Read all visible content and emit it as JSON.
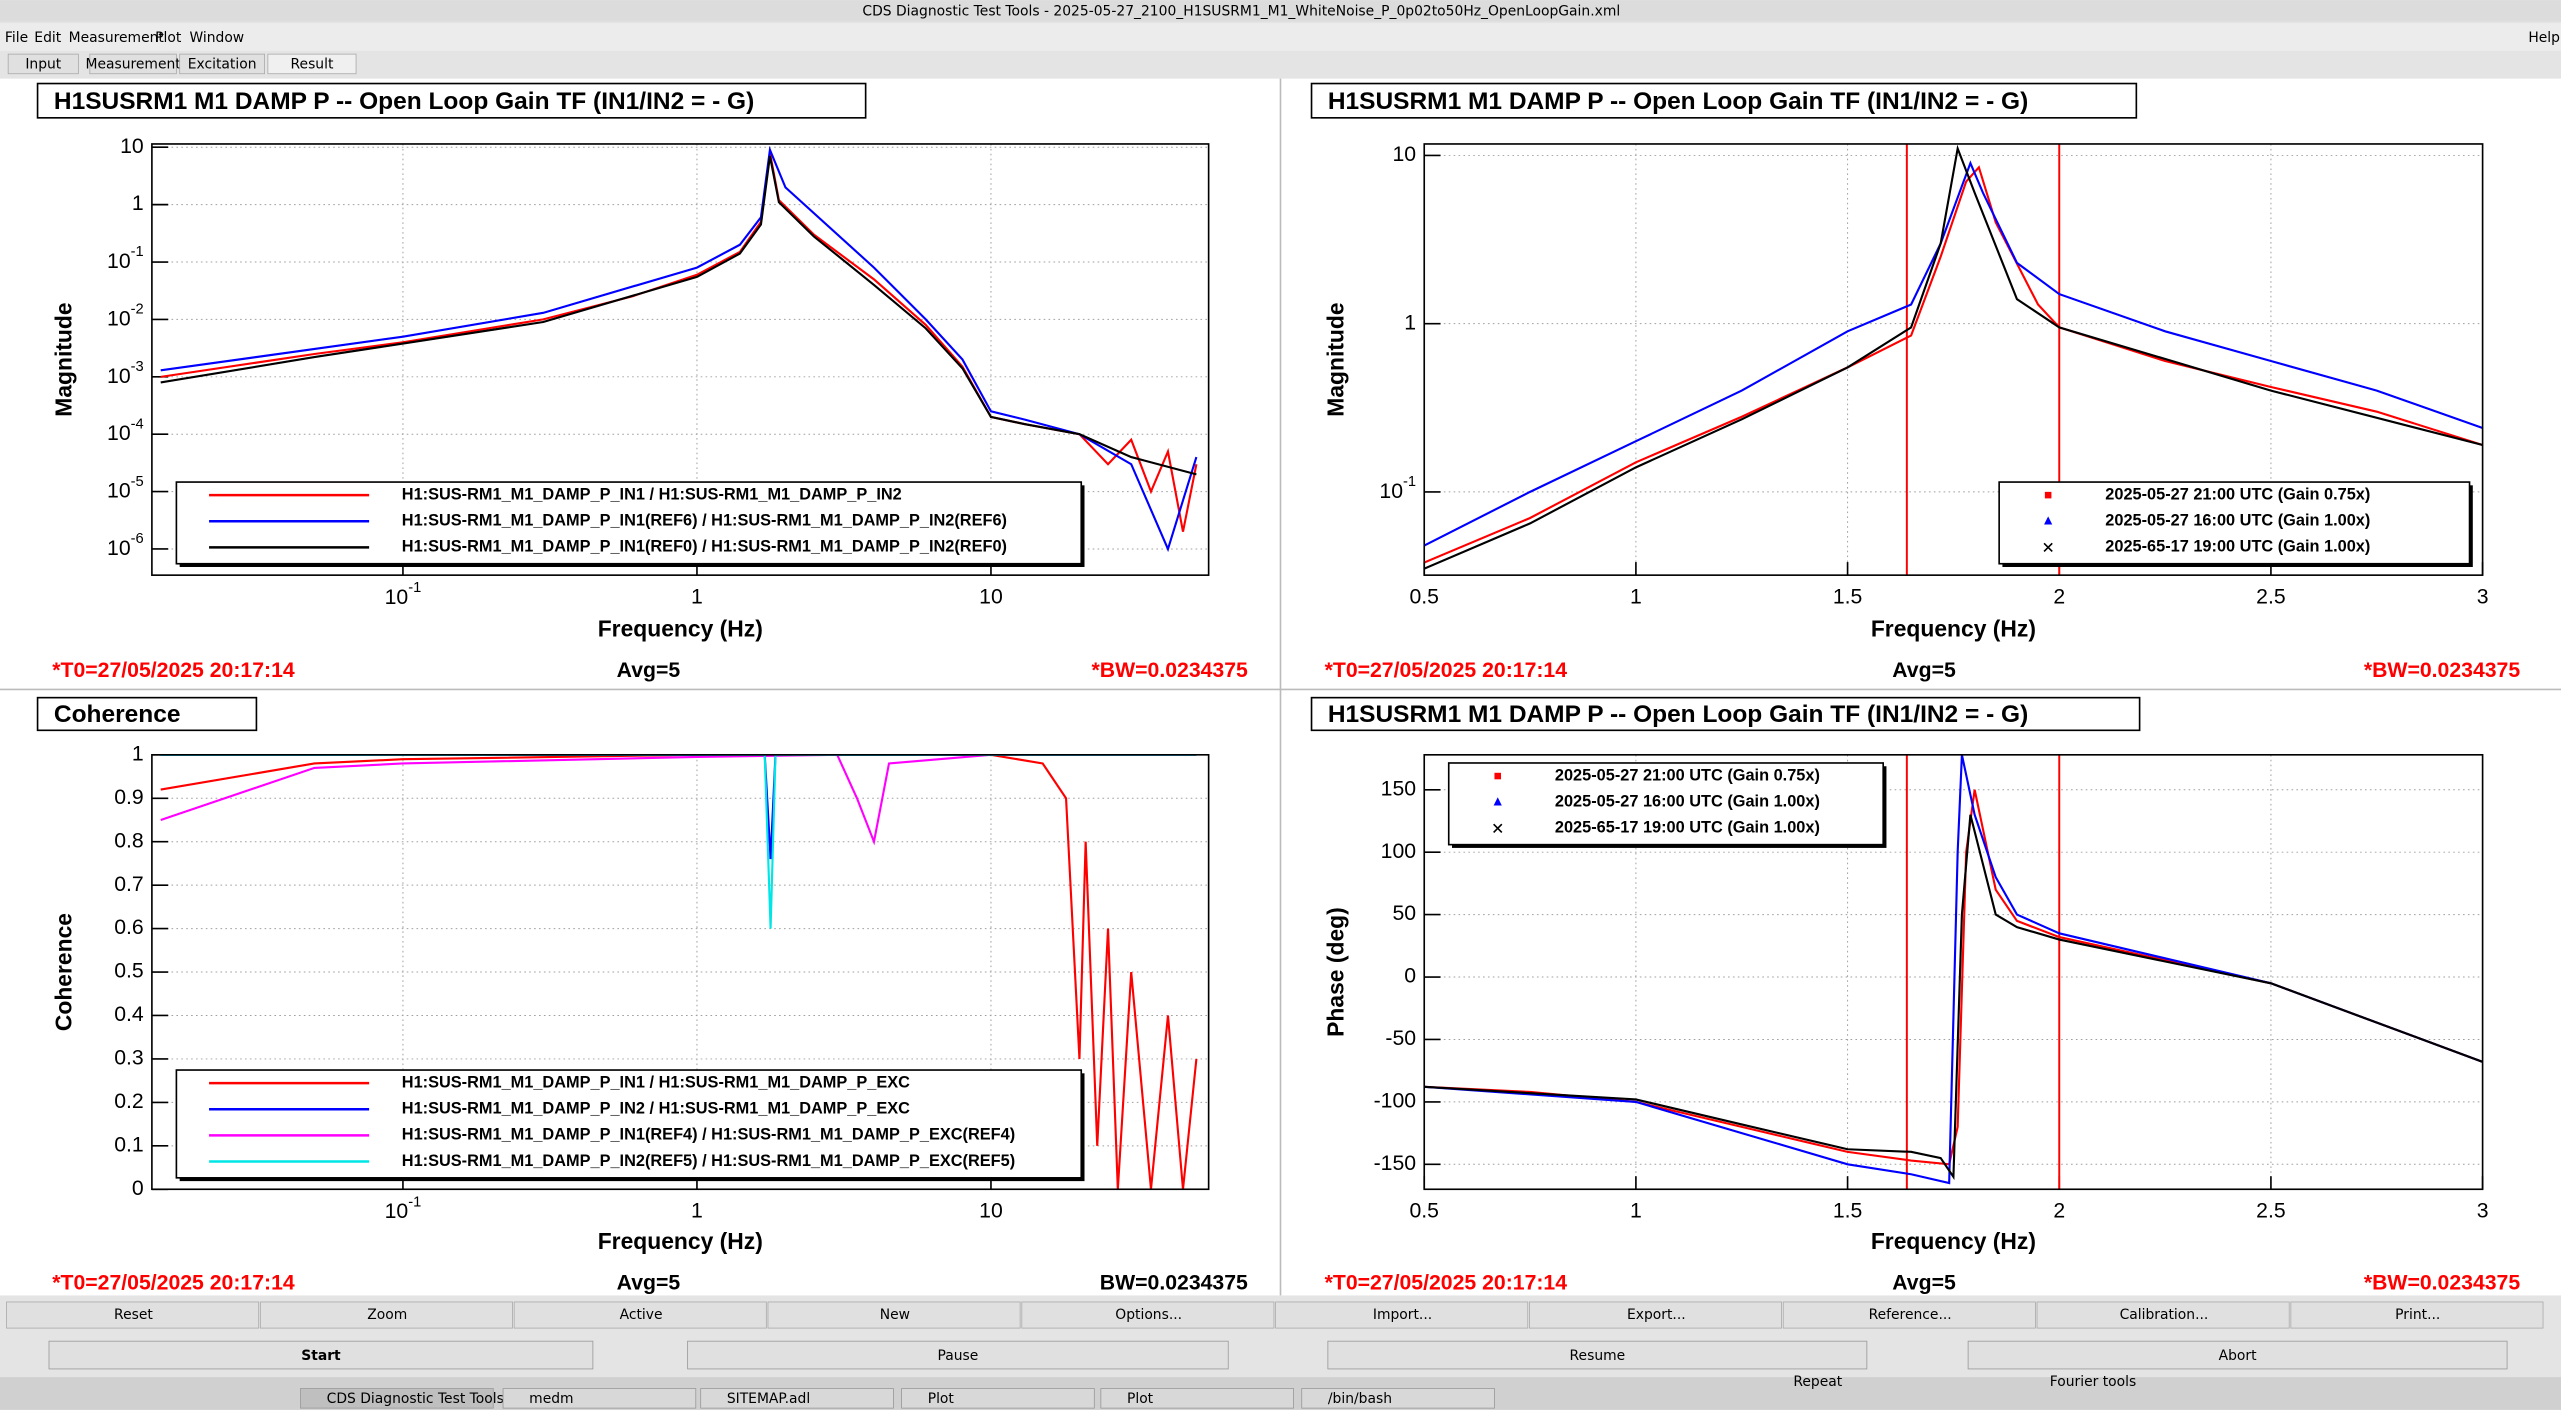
{
  "window_title": "CDS Diagnostic Test Tools - 2025-05-27_2100_H1SUSRM1_M1_WhiteNoise_P_0p02to50Hz_OpenLoopGain.xml",
  "menu": [
    "File",
    "Edit",
    "Measurement",
    "Plot",
    "Window"
  ],
  "help": "Help",
  "tabs": [
    "Input",
    "Measurement",
    "Excitation",
    "Result"
  ],
  "panels": [
    {
      "title": "H1SUSRM1 M1 DAMP P -- Open Loop Gain TF (IN1/IN2 = - G)",
      "xlabel": "Frequency (Hz)",
      "ylabel": "Magnitude",
      "xlog": true,
      "ylog": true,
      "grid": true,
      "legend": "bottom-left",
      "legend_style": "line",
      "xlim": [
        0.014,
        55
      ],
      "ylim": [
        3.5e-07,
        11.4
      ],
      "xticks": [
        {
          "value": 0.1,
          "label": "10",
          "exp": "-1"
        },
        1,
        10
      ],
      "yticks": [
        {
          "value": 1e-06,
          "label": "10",
          "exp": "-6"
        },
        {
          "value": 1e-05,
          "label": "10",
          "exp": "-5"
        },
        {
          "value": 0.0001,
          "label": "10",
          "exp": "-4"
        },
        {
          "value": 0.001,
          "label": "10",
          "exp": "-3"
        },
        {
          "value": 0.01,
          "label": "10",
          "exp": "-2"
        },
        {
          "value": 0.1,
          "label": "10",
          "exp": "-1"
        },
        1,
        10
      ],
      "series": [
        {
          "name": "H1:SUS-RM1_M1_DAMP_P_IN1 / H1:SUS-RM1_M1_DAMP_P_IN2",
          "color": "#ff0000",
          "x": [
            0.015,
            0.05,
            0.1,
            0.3,
            0.6,
            1,
            1.4,
            1.65,
            1.77,
            1.9,
            2.5,
            4,
            6,
            8,
            10,
            13,
            20,
            25,
            30,
            35,
            40,
            45,
            50
          ],
          "y": [
            0.001,
            0.0025,
            0.004,
            0.01,
            0.025,
            0.06,
            0.15,
            0.5,
            8,
            1.2,
            0.3,
            0.05,
            0.008,
            0.0015,
            0.0002,
            0.00015,
            0.0001,
            3e-05,
            8e-05,
            1e-05,
            5e-05,
            2e-06,
            3e-05
          ]
        },
        {
          "name": "H1:SUS-RM1_M1_DAMP_P_IN1(REF6) / H1:SUS-RM1_M1_DAMP_P_IN2(REF6)",
          "color": "#0000ff",
          "x": [
            0.015,
            0.1,
            0.3,
            1,
            1.4,
            1.65,
            1.77,
            2,
            4,
            6,
            8,
            10,
            13,
            20,
            30,
            40,
            50
          ],
          "y": [
            0.0013,
            0.005,
            0.013,
            0.08,
            0.2,
            0.6,
            9,
            2,
            0.08,
            0.01,
            0.002,
            0.00025,
            0.00018,
            0.0001,
            3e-05,
            1e-06,
            4e-05
          ]
        },
        {
          "name": "H1:SUS-RM1_M1_DAMP_P_IN1(REF0) / H1:SUS-RM1_M1_DAMP_P_IN2(REF0)",
          "color": "#000000",
          "x": [
            0.015,
            0.05,
            0.1,
            0.3,
            1,
            1.4,
            1.65,
            1.77,
            1.9,
            2.5,
            4,
            6,
            8,
            10,
            13,
            20,
            30,
            50
          ],
          "y": [
            0.0008,
            0.0022,
            0.0038,
            0.009,
            0.055,
            0.14,
            0.45,
            7,
            1.1,
            0.28,
            0.04,
            0.007,
            0.0014,
            0.0002,
            0.00015,
            0.0001,
            4e-05,
            2e-05
          ]
        }
      ],
      "footer": [
        {
          "text": "*T0=27/05/2025 20:17:14",
          "color": "#ff0000"
        },
        {
          "text": "Avg=5",
          "color": "#000000"
        },
        {
          "text": "*BW=0.0234375",
          "color": "#ff0000"
        }
      ]
    },
    {
      "title": "H1SUSRM1 M1 DAMP P -- Open Loop Gain TF (IN1/IN2 = - G)",
      "xlabel": "Frequency (Hz)",
      "ylabel": "Magnitude",
      "xlog": false,
      "ylog": true,
      "grid": true,
      "legend": "bottom-right",
      "legend_style": "marker",
      "xlim": [
        0.5,
        3
      ],
      "ylim": [
        0.032,
        11.7
      ],
      "xticks": [
        0.5,
        1,
        1.5,
        2,
        2.5,
        3
      ],
      "yticks": [
        {
          "value": 0.1,
          "label": "10",
          "exp": "-1"
        },
        1,
        10
      ],
      "cursors": [
        1.64,
        2.0
      ],
      "cursor_color": "#ff0000",
      "series": [
        {
          "name": "2025-05-27 21:00 UTC (Gain 0.75x)",
          "color": "#ff0000",
          "marker": "square",
          "x": [
            0.5,
            0.75,
            1,
            1.25,
            1.5,
            1.65,
            1.72,
            1.78,
            1.81,
            1.85,
            1.95,
            2,
            2.25,
            2.5,
            2.75,
            3
          ],
          "y": [
            0.038,
            0.07,
            0.15,
            0.28,
            0.55,
            0.85,
            2.5,
            7,
            8.5,
            4,
            1.3,
            0.95,
            0.6,
            0.42,
            0.3,
            0.19
          ]
        },
        {
          "name": "2025-05-27 16:00 UTC (Gain 1.00x)",
          "color": "#0000ff",
          "marker": "triangle",
          "x": [
            0.5,
            0.75,
            1,
            1.25,
            1.5,
            1.65,
            1.72,
            1.79,
            1.82,
            1.9,
            2,
            2.25,
            2.5,
            2.75,
            3
          ],
          "y": [
            0.048,
            0.1,
            0.2,
            0.4,
            0.9,
            1.3,
            3,
            9,
            6,
            2.3,
            1.5,
            0.9,
            0.6,
            0.4,
            0.24
          ]
        },
        {
          "name": "2025-65-17 19:00 UTC (Gain 1.00x)",
          "color": "#000000",
          "marker": "x",
          "x": [
            0.5,
            0.75,
            1,
            1.25,
            1.5,
            1.65,
            1.72,
            1.76,
            1.8,
            1.9,
            2,
            2.5,
            3
          ],
          "y": [
            0.035,
            0.065,
            0.14,
            0.27,
            0.55,
            0.95,
            3,
            11,
            6,
            1.4,
            0.95,
            0.4,
            0.19
          ]
        }
      ],
      "footer": [
        {
          "text": "*T0=27/05/2025 20:17:14",
          "color": "#ff0000"
        },
        {
          "text": "Avg=5",
          "color": "#000000"
        },
        {
          "text": "*BW=0.0234375",
          "color": "#ff0000"
        }
      ]
    },
    {
      "title": "Coherence",
      "xlabel": "Frequency (Hz)",
      "ylabel": "Coherence",
      "xlog": true,
      "ylog": false,
      "grid": true,
      "legend": "bottom-left",
      "legend_style": "line",
      "xlim": [
        0.014,
        55
      ],
      "ylim": [
        0,
        1
      ],
      "xticks": [
        {
          "value": 0.1,
          "label": "10",
          "exp": "-1"
        },
        1,
        10
      ],
      "yticks": [
        0,
        0.1,
        0.2,
        0.3,
        0.4,
        0.5,
        0.6,
        0.7,
        0.8,
        0.9,
        1
      ],
      "series": [
        {
          "name": "H1:SUS-RM1_M1_DAMP_P_IN1 / H1:SUS-RM1_M1_DAMP_P_EXC",
          "color": "#ff0000",
          "x": [
            0.015,
            0.05,
            0.1,
            1,
            10,
            15,
            18,
            20,
            21,
            23,
            25,
            27,
            30,
            35,
            40,
            45,
            50
          ],
          "y": [
            0.92,
            0.98,
            0.99,
            1,
            1,
            0.98,
            0.9,
            0.3,
            0.8,
            0.1,
            0.6,
            0,
            0.5,
            0,
            0.4,
            0,
            0.3
          ]
        },
        {
          "name": "H1:SUS-RM1_M1_DAMP_P_IN2 / H1:SUS-RM1_M1_DAMP_P_EXC",
          "color": "#0000ff",
          "x": [
            0.015,
            1.7,
            1.78,
            1.85,
            50
          ],
          "y": [
            1,
            1,
            0.76,
            1,
            1
          ]
        },
        {
          "name": "H1:SUS-RM1_M1_DAMP_P_IN1(REF4) / H1:SUS-RM1_M1_DAMP_P_EXC(REF4)",
          "color": "#ff00ff",
          "x": [
            0.015,
            0.05,
            0.1,
            1,
            3,
            3.5,
            4,
            4.5,
            10,
            50
          ],
          "y": [
            0.85,
            0.97,
            0.98,
            0.995,
            1,
            0.9,
            0.8,
            0.98,
            1,
            1
          ]
        },
        {
          "name": "H1:SUS-RM1_M1_DAMP_P_IN2(REF5) / H1:SUS-RM1_M1_DAMP_P_EXC(REF5)",
          "color": "#00e5e5",
          "x": [
            0.015,
            1.7,
            1.78,
            1.85,
            50
          ],
          "y": [
            1,
            1,
            0.6,
            1,
            1
          ]
        }
      ],
      "footer": [
        {
          "text": "*T0=27/05/2025 20:17:14",
          "color": "#ff0000"
        },
        {
          "text": "Avg=5",
          "color": "#000000"
        },
        {
          "text": "BW=0.0234375",
          "color": "#000000"
        }
      ]
    },
    {
      "title": "H1SUSRM1 M1 DAMP P -- Open Loop Gain TF (IN1/IN2 = - G)",
      "xlabel": "Frequency (Hz)",
      "ylabel": "Phase (deg)",
      "xlog": false,
      "ylog": false,
      "grid": true,
      "legend": "top-left",
      "legend_style": "marker",
      "xlim": [
        0.5,
        3
      ],
      "ylim": [
        -170,
        178
      ],
      "xticks": [
        0.5,
        1,
        1.5,
        2,
        2.5,
        3
      ],
      "yticks": [
        -150,
        -100,
        -50,
        0,
        50,
        100,
        150
      ],
      "cursors": [
        1.64,
        2.0
      ],
      "cursor_color": "#ff0000",
      "series": [
        {
          "name": "2025-05-27 21:00 UTC (Gain 0.75x)",
          "color": "#ff0000",
          "marker": "square",
          "x": [
            0.5,
            0.75,
            1,
            1.25,
            1.5,
            1.65,
            1.74,
            1.76,
            1.78,
            1.8,
            1.85,
            1.9,
            2,
            2.5,
            3
          ],
          "y": [
            -88,
            -92,
            -100,
            -120,
            -140,
            -147,
            -150,
            -120,
            100,
            150,
            70,
            45,
            32,
            -5,
            -68
          ]
        },
        {
          "name": "2025-05-27 16:00 UTC (Gain 1.00x)",
          "color": "#0000ff",
          "marker": "triangle",
          "x": [
            0.5,
            1,
            1.25,
            1.5,
            1.65,
            1.74,
            1.76,
            1.77,
            1.8,
            1.85,
            1.9,
            2,
            2.5,
            3
          ],
          "y": [
            -88,
            -100,
            -125,
            -150,
            -158,
            -165,
            100,
            178,
            130,
            80,
            50,
            35,
            -5,
            -68
          ]
        },
        {
          "name": "2025-65-17 19:00 UTC (Gain 1.00x)",
          "color": "#000000",
          "marker": "x",
          "x": [
            0.5,
            1,
            1.25,
            1.5,
            1.65,
            1.72,
            1.75,
            1.77,
            1.79,
            1.85,
            1.9,
            2,
            2.5,
            3
          ],
          "y": [
            -88,
            -98,
            -118,
            -138,
            -140,
            -145,
            -160,
            50,
            130,
            50,
            40,
            30,
            -5,
            -68
          ]
        }
      ],
      "footer": [
        {
          "text": "*T0=27/05/2025 20:17:14",
          "color": "#ff0000"
        },
        {
          "text": "Avg=5",
          "color": "#000000"
        },
        {
          "text": "*BW=0.0234375",
          "color": "#ff0000"
        }
      ]
    }
  ],
  "buttons": [
    "Reset",
    "Zoom",
    "Active",
    "New",
    "Options...",
    "Import...",
    "Export...",
    "Reference...",
    "Calibration...",
    "Print..."
  ],
  "controls": [
    "Start",
    "Pause",
    "Resume",
    "Abort"
  ],
  "status": [
    "Repeat",
    "Fourier tools"
  ],
  "taskbar": [
    "CDS Diagnostic Test Tools ...",
    "medm",
    "SITEMAP.adl",
    "Plot",
    "Plot",
    "/bin/bash"
  ]
}
